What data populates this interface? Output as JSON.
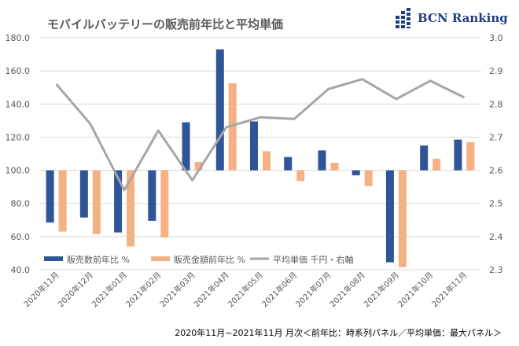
{
  "header": {
    "title": "モバイルバッテリーの販売前年比と平均単価",
    "logo_text": "BCN Ranking"
  },
  "footer": {
    "note": "2020年11月~2021年11月 月次＜前年比：時系列パネル／平均単価：最大パネル＞"
  },
  "chart_data": {
    "type": "bar+line",
    "categories": [
      "2020年11月",
      "2020年12月",
      "2021年01月",
      "2021年02月",
      "2021年03月",
      "2021年04月",
      "2021年05月",
      "2021年06月",
      "2021年07月",
      "2021年08月",
      "2021年09月",
      "2021年10月",
      "2021年11月"
    ],
    "series": [
      {
        "name": "販売数前年比 %",
        "type": "bar",
        "axis": "left",
        "color": "#2f5597",
        "values": [
          68.5,
          71.5,
          62.5,
          69.5,
          129,
          173,
          129.5,
          108,
          112,
          97,
          44.5,
          115,
          118.5
        ]
      },
      {
        "name": "販売金額前年比 %",
        "type": "bar",
        "axis": "left",
        "color": "#f4b183",
        "values": [
          63,
          61.5,
          54,
          59.5,
          105,
          152.5,
          111.5,
          93.5,
          104.5,
          90.5,
          41.5,
          107,
          117
        ]
      },
      {
        "name": "平均単価 千円・右軸",
        "type": "line",
        "axis": "right",
        "color": "#a6a6a6",
        "values": [
          2.86,
          2.74,
          2.54,
          2.72,
          2.57,
          2.73,
          2.76,
          2.755,
          2.845,
          2.875,
          2.815,
          2.87,
          2.82
        ]
      }
    ],
    "bar_baseline": 100,
    "y_left": {
      "min": 40,
      "max": 180,
      "ticks": [
        "40.0",
        "60.0",
        "80.0",
        "100.0",
        "120.0",
        "140.0",
        "160.0",
        "180.0"
      ]
    },
    "y_right": {
      "min": 2.3,
      "max": 3.0,
      "ticks": [
        "2.3",
        "2.4",
        "2.5",
        "2.6",
        "2.7",
        "2.8",
        "2.9",
        "3.0"
      ]
    },
    "grid": true,
    "legend": "bottom-left"
  }
}
